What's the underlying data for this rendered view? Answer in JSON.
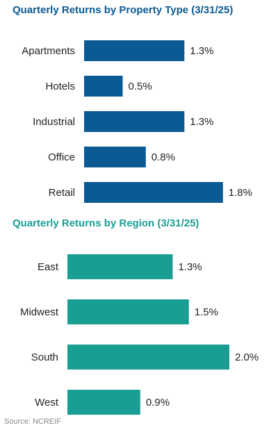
{
  "colors": {
    "chart1_bar": "#0b5a93",
    "chart2_bar": "#1a9e94",
    "chart1_title": "#0b5a93",
    "chart2_title": "#1a9e94"
  },
  "source": "Source: NCREIF",
  "chart_data": [
    {
      "type": "bar",
      "orientation": "horizontal",
      "title": "Quarterly Returns by Property Type (3/31/25)",
      "categories": [
        "Apartments",
        "Hotels",
        "Industrial",
        "Office",
        "Retail"
      ],
      "values": [
        1.3,
        0.5,
        1.3,
        0.8,
        1.8
      ],
      "value_labels": [
        "1.3%",
        "0.5%",
        "1.3%",
        "0.8%",
        "1.8%"
      ],
      "unit": "%",
      "xlabel": "",
      "ylabel": "",
      "xlim": [
        0,
        2.0
      ],
      "grid": false,
      "legend": "none"
    },
    {
      "type": "bar",
      "orientation": "horizontal",
      "title": "Quarterly Returns by Region (3/31/25)",
      "categories": [
        "East",
        "Midwest",
        "South",
        "West"
      ],
      "values": [
        1.3,
        1.5,
        2.0,
        0.9
      ],
      "value_labels": [
        "1.3%",
        "1.5%",
        "2.0%",
        "0.9%"
      ],
      "unit": "%",
      "xlabel": "",
      "ylabel": "",
      "xlim": [
        0,
        2.0
      ],
      "grid": false,
      "legend": "none"
    }
  ]
}
